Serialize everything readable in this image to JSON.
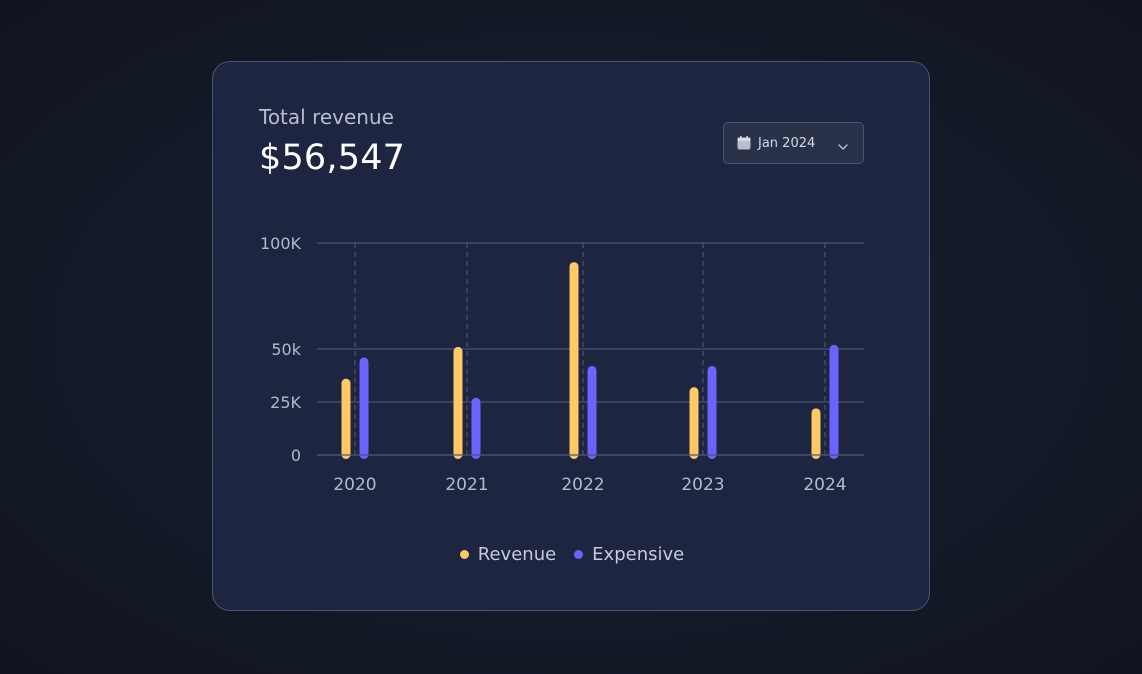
{
  "header": {
    "title": "Total revenue",
    "value": "$56,547"
  },
  "date_filter": {
    "label": "Jan 2024",
    "icon": "calendar-icon",
    "chevron": "chevron-down-icon"
  },
  "colors": {
    "revenue": "#ffc966",
    "expensive": "#6a63ff",
    "grid": "#4b5470",
    "axis_text": "#b4bacb"
  },
  "chart_data": {
    "type": "bar",
    "categories": [
      "2020",
      "2021",
      "2022",
      "2023",
      "2024"
    ],
    "series": [
      {
        "name": "Revenue",
        "values": [
          36,
          51,
          91,
          32,
          22
        ]
      },
      {
        "name": "Expensive",
        "values": [
          46,
          27,
          42,
          42,
          52
        ]
      }
    ],
    "y_ticks": [
      {
        "value": 0,
        "label": "0"
      },
      {
        "value": 25,
        "label": "25K"
      },
      {
        "value": 50,
        "label": "50k"
      },
      {
        "value": 100,
        "label": "100K"
      }
    ],
    "ylim": [
      0,
      100
    ],
    "grid": true,
    "legend_position": "bottom"
  }
}
